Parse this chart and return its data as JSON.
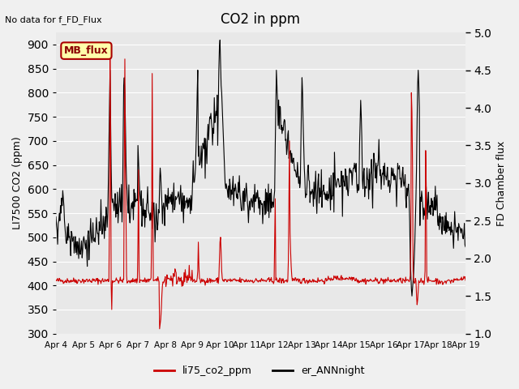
{
  "title": "CO2 in ppm",
  "ylabel_left": "LI7500 CO2 (ppm)",
  "ylabel_right": "FD Chamber flux",
  "xlabel": "",
  "text_no_data": "No data for f_FD_Flux",
  "legend_label1": "li75_co2_ppm",
  "legend_label2": "er_ANNnight",
  "annotation_box": "MB_flux",
  "ylim_left": [
    300,
    925
  ],
  "ylim_right": [
    1.0,
    5.0
  ],
  "yticks_left": [
    300,
    350,
    400,
    450,
    500,
    550,
    600,
    650,
    700,
    750,
    800,
    850,
    900
  ],
  "yticks_right": [
    1.0,
    1.5,
    2.0,
    2.5,
    3.0,
    3.5,
    4.0,
    4.5,
    5.0
  ],
  "xtick_labels": [
    "Apr 4",
    "Apr 5",
    "Apr 6",
    "Apr 7",
    "Apr 8",
    "Apr 9",
    "Apr 10",
    "Apr 11",
    "Apr 12",
    "Apr 13",
    "Apr 14",
    "Apr 15",
    "Apr 16",
    "Apr 17",
    "Apr 18",
    "Apr 19"
  ],
  "bg_color": "#e8e8e8",
  "line_color_red": "#cc0000",
  "line_color_black": "#000000",
  "grid_color": "#ffffff",
  "annotation_box_color": "#ffffaa",
  "annotation_box_edge": "#aa0000"
}
